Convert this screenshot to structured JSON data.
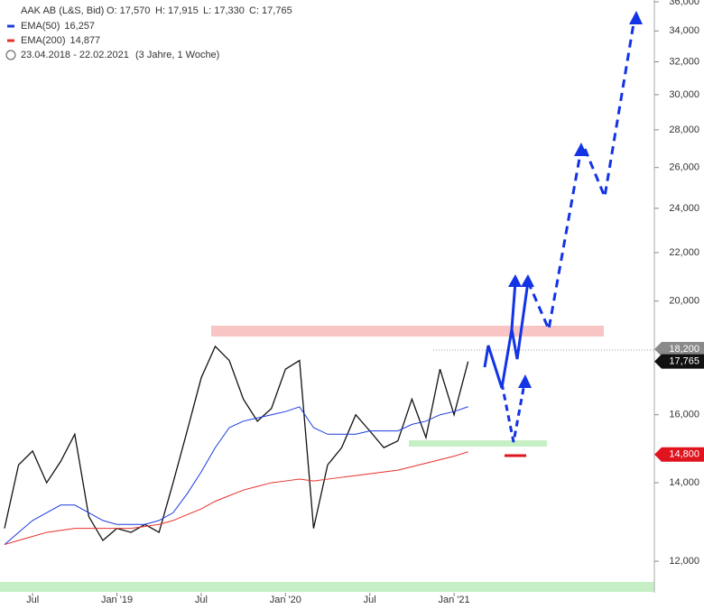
{
  "chart_data": {
    "type": "line",
    "header": {
      "title": "AAK AB (L&S, Bid)",
      "open": "O: 17,570",
      "high": "H: 17,915",
      "low": "L: 17,330",
      "close": "C: 17,765",
      "period": "23.04.2018 - 22.02.2021",
      "duration": "(3 Jahre, 1 Woche)"
    },
    "legend_values": [
      "",
      "16,257",
      "14,877"
    ],
    "x": [
      "2018-05",
      "2018-06",
      "2018-07",
      "2018-08",
      "2018-09",
      "2018-10",
      "2018-11",
      "2018-12",
      "2019-01",
      "2019-02",
      "2019-03",
      "2019-04",
      "2019-05",
      "2019-06",
      "2019-07",
      "2019-08",
      "2019-09",
      "2019-10",
      "2019-11",
      "2019-12",
      "2020-01",
      "2020-02",
      "2020-03",
      "2020-04",
      "2020-05",
      "2020-06",
      "2020-07",
      "2020-08",
      "2020-09",
      "2020-10",
      "2020-11",
      "2020-12",
      "2021-01",
      "2021-02"
    ],
    "series": [
      {
        "name": "AAK AB (L&S, Bid)",
        "color": "#111111",
        "values": [
          12800,
          14500,
          14900,
          14000,
          14600,
          15400,
          13100,
          12500,
          12800,
          12700,
          12900,
          12700,
          14000,
          15500,
          17200,
          18300,
          17800,
          16500,
          15800,
          16200,
          17500,
          17800,
          12800,
          14500,
          15000,
          16000,
          15500,
          15000,
          15200,
          16500,
          15300,
          17500,
          16000,
          17765
        ]
      },
      {
        "name": "EMA(50)",
        "color": "#1a3be0",
        "values": [
          12400,
          12700,
          13000,
          13200,
          13400,
          13400,
          13200,
          13000,
          12900,
          12900,
          12900,
          13000,
          13200,
          13700,
          14300,
          15000,
          15600,
          15800,
          15900,
          16000,
          16100,
          16250,
          15600,
          15400,
          15400,
          15400,
          15500,
          15500,
          15500,
          15700,
          15800,
          16000,
          16100,
          16257
        ]
      },
      {
        "name": "EMA(200)",
        "color": "#e8302a",
        "values": [
          12400,
          12500,
          12600,
          12700,
          12750,
          12800,
          12800,
          12800,
          12800,
          12800,
          12850,
          12900,
          13000,
          13150,
          13300,
          13500,
          13650,
          13800,
          13900,
          14000,
          14050,
          14100,
          14050,
          14100,
          14150,
          14200,
          14250,
          14300,
          14350,
          14450,
          14550,
          14650,
          14750,
          14877
        ]
      }
    ],
    "xlim": [
      "2018-05",
      "2022-03"
    ],
    "xticks": [
      {
        "value": "2018-07",
        "label": "Jul"
      },
      {
        "value": "2019-01",
        "label": "Jan '19"
      },
      {
        "value": "2019-07",
        "label": "Jul"
      },
      {
        "value": "2020-01",
        "label": "Jan '20"
      },
      {
        "value": "2020-07",
        "label": "Jul"
      },
      {
        "value": "2021-01",
        "label": "Jan '21"
      }
    ],
    "ylim": [
      11280,
      36130
    ],
    "log_scale": true,
    "yticks": [
      {
        "value": 12000,
        "label": "12,000"
      },
      {
        "value": 14000,
        "label": "14,000"
      },
      {
        "value": 16000,
        "label": "16,000"
      },
      {
        "value": 20000,
        "label": "20,000"
      },
      {
        "value": 22000,
        "label": "22,000"
      },
      {
        "value": 24000,
        "label": "24,000"
      },
      {
        "value": 26000,
        "label": "26,000"
      },
      {
        "value": 28000,
        "label": "28,000"
      },
      {
        "value": 30000,
        "label": "30,000"
      },
      {
        "value": 32000,
        "label": "32,000"
      },
      {
        "value": 34000,
        "label": "34,000"
      },
      {
        "value": 36000,
        "label": "36,000"
      }
    ],
    "price_labels": [
      {
        "value": 18200,
        "label": "18,200",
        "color": "#8a8a8a"
      },
      {
        "value": 17765,
        "label": "17,765",
        "color": "#111111"
      },
      {
        "value": 14800,
        "label": "14,800",
        "color": "#e0141e"
      }
    ]
  }
}
